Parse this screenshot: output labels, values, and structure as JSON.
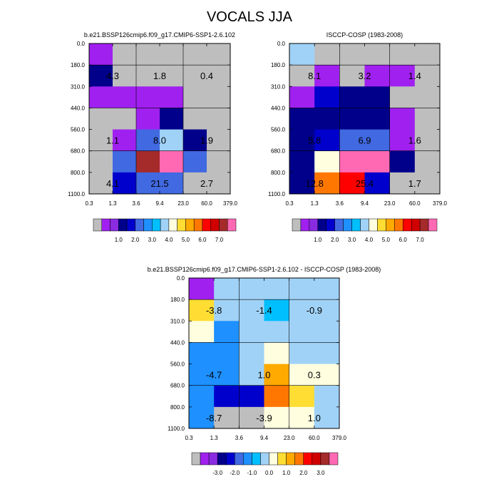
{
  "figure": {
    "title": "VOCALS JJA"
  },
  "colors": {
    "gray": "#BEBEBE",
    "grid_line": "#000000"
  },
  "colorbar_fills": [
    "#BEBEBE",
    "#A020F0",
    "#8A2BE2",
    "#00008B",
    "#0000CD",
    "#4169E1",
    "#1E90FF",
    "#00BFFF",
    "#A0D2F7",
    "#FFFFE0",
    "#FFDD33",
    "#FFAA00",
    "#FF7700",
    "#FF0000",
    "#D00000",
    "#A52A2A",
    "#FF69B4"
  ],
  "chart_data": [
    {
      "type": "heatmap",
      "title": "b.e21.BSSP126cmip6.f09_g17.CMIP6-SSP1-2.6.102",
      "x_ticks": [
        "0.3",
        "1.3",
        "3.6",
        "9.4",
        "23.0",
        "60.0",
        "379.0"
      ],
      "y_ticks": [
        "0.0",
        "180.0",
        "310.0",
        "440.0",
        "560.0",
        "680.0",
        "800.0",
        "1100.0"
      ],
      "cells": [
        [
          "#A020F0",
          "#BEBEBE",
          "#BEBEBE",
          "#BEBEBE",
          "#BEBEBE",
          "#BEBEBE"
        ],
        [
          "#00008B",
          "#BEBEBE",
          "#BEBEBE",
          "#BEBEBE",
          "#BEBEBE",
          "#BEBEBE"
        ],
        [
          "#A020F0",
          "#A020F0",
          "#A020F0",
          "#A020F0",
          "#BEBEBE",
          "#BEBEBE"
        ],
        [
          "#BEBEBE",
          "#BEBEBE",
          "#A020F0",
          "#00008B",
          "#BEBEBE",
          "#BEBEBE"
        ],
        [
          "#BEBEBE",
          "#A020F0",
          "#4169E1",
          "#A0D2F7",
          "#00008B",
          "#BEBEBE"
        ],
        [
          "#BEBEBE",
          "#4169E1",
          "#A52A2A",
          "#FF69B4",
          "#4169E1",
          "#BEBEBE"
        ],
        [
          "#BEBEBE",
          "#0000CD",
          "#4169E1",
          "#4169E1",
          "#BEBEBE",
          "#BEBEBE"
        ]
      ],
      "labels": [
        {
          "text": "4.3",
          "col": 0.5,
          "row": 1
        },
        {
          "text": "1.8",
          "col": 2.5,
          "row": 1
        },
        {
          "text": "0.4",
          "col": 4.5,
          "row": 1
        },
        {
          "text": "1.1",
          "col": 0.5,
          "row": 4
        },
        {
          "text": "8.0",
          "col": 2.5,
          "row": 4
        },
        {
          "text": "1.9",
          "col": 4.5,
          "row": 4
        },
        {
          "text": "4.1",
          "col": 0.5,
          "row": 6
        },
        {
          "text": "21.5",
          "col": 2.5,
          "row": 6
        },
        {
          "text": "2.7",
          "col": 4.5,
          "row": 6
        }
      ],
      "colorbar_labels": [
        "1.0",
        "2.0",
        "3.0",
        "4.0",
        "5.0",
        "6.0",
        "7.0"
      ]
    },
    {
      "type": "heatmap",
      "title": "ISCCP-COSP (1983-2008)",
      "x_ticks": [
        "0.3",
        "1.3",
        "3.6",
        "9.4",
        "23.0",
        "60.0",
        "379.0"
      ],
      "y_ticks": [
        "0.0",
        "180.0",
        "310.0",
        "440.0",
        "560.0",
        "680.0",
        "800.0",
        "1100.0"
      ],
      "cells": [
        [
          "#A0D2F7",
          "#BEBEBE",
          "#BEBEBE",
          "#BEBEBE",
          "#BEBEBE",
          "#BEBEBE"
        ],
        [
          "#BEBEBE",
          "#A020F0",
          "#BEBEBE",
          "#A020F0",
          "#A020F0",
          "#BEBEBE"
        ],
        [
          "#A020F0",
          "#0000CD",
          "#00008B",
          "#00008B",
          "#BEBEBE",
          "#BEBEBE"
        ],
        [
          "#00008B",
          "#00008B",
          "#00008B",
          "#00008B",
          "#A020F0",
          "#BEBEBE"
        ],
        [
          "#00008B",
          "#0000CD",
          "#4169E1",
          "#4169E1",
          "#A020F0",
          "#BEBEBE"
        ],
        [
          "#00008B",
          "#FFFFE0",
          "#FF69B4",
          "#FF69B4",
          "#00008B",
          "#BEBEBE"
        ],
        [
          "#00008B",
          "#FF7700",
          "#FF0000",
          "#0000CD",
          "#BEBEBE",
          "#BEBEBE"
        ]
      ],
      "labels": [
        {
          "text": "8.1",
          "col": 0.5,
          "row": 1
        },
        {
          "text": "3.2",
          "col": 2.5,
          "row": 1
        },
        {
          "text": "1.4",
          "col": 4.5,
          "row": 1
        },
        {
          "text": "5.8",
          "col": 0.5,
          "row": 4
        },
        {
          "text": "6.9",
          "col": 2.5,
          "row": 4
        },
        {
          "text": "1.6",
          "col": 4.5,
          "row": 4
        },
        {
          "text": "12.8",
          "col": 0.5,
          "row": 6
        },
        {
          "text": "25.4",
          "col": 2.5,
          "row": 6
        },
        {
          "text": "1.7",
          "col": 4.5,
          "row": 6
        }
      ],
      "colorbar_labels": [
        "1.0",
        "2.0",
        "3.0",
        "4.0",
        "5.0",
        "6.0",
        "7.0"
      ]
    },
    {
      "type": "heatmap",
      "title": "b.e21.BSSP126cmip6.f09_g17.CMIP6-SSP1-2.6.102 - ISCCP-COSP (1983-2008)",
      "x_ticks": [
        "0.3",
        "1.3",
        "3.6",
        "9.4",
        "23.0",
        "60.0",
        "379.0"
      ],
      "y_ticks": [
        "0.0",
        "180.0",
        "310.0",
        "440.0",
        "560.0",
        "680.0",
        "800.0",
        "1100.0"
      ],
      "cells": [
        [
          "#A020F0",
          "#A0D2F7",
          "#A0D2F7",
          "#A0D2F7",
          "#A0D2F7",
          "#A0D2F7"
        ],
        [
          "#FFDD33",
          "#A0D2F7",
          "#A0D2F7",
          "#00BFFF",
          "#A0D2F7",
          "#A0D2F7"
        ],
        [
          "#FFFFE0",
          "#1E90FF",
          "#A0D2F7",
          "#A0D2F7",
          "#A0D2F7",
          "#A0D2F7"
        ],
        [
          "#1E90FF",
          "#1E90FF",
          "#A0D2F7",
          "#FFFFE0",
          "#A0D2F7",
          "#A0D2F7"
        ],
        [
          "#1E90FF",
          "#1E90FF",
          "#A0D2F7",
          "#FFAA00",
          "#FFFFE0",
          "#FFFFE0"
        ],
        [
          "#1E90FF",
          "#0000CD",
          "#0000CD",
          "#FF7700",
          "#FFDD33",
          "#A0D2F7"
        ],
        [
          "#1E90FF",
          "#BEBEBE",
          "#BEBEBE",
          "#FFFFE0",
          "#FFFFE0",
          "#A0D2F7"
        ]
      ],
      "labels": [
        {
          "text": "-3.8",
          "col": 0.5,
          "row": 1
        },
        {
          "text": "-1.4",
          "col": 2.5,
          "row": 1
        },
        {
          "text": "-0.9",
          "col": 4.5,
          "row": 1
        },
        {
          "text": "-4.7",
          "col": 0.5,
          "row": 4
        },
        {
          "text": "1.0",
          "col": 2.5,
          "row": 4
        },
        {
          "text": "0.3",
          "col": 4.5,
          "row": 4
        },
        {
          "text": "-8.7",
          "col": 0.5,
          "row": 6
        },
        {
          "text": "-3.9",
          "col": 2.5,
          "row": 6
        },
        {
          "text": "1.0",
          "col": 4.5,
          "row": 6
        }
      ],
      "colorbar_labels": [
        "-3.0",
        "-2.0",
        "-1.0",
        "0.0",
        "1.0",
        "2.0",
        "3.0"
      ]
    }
  ]
}
